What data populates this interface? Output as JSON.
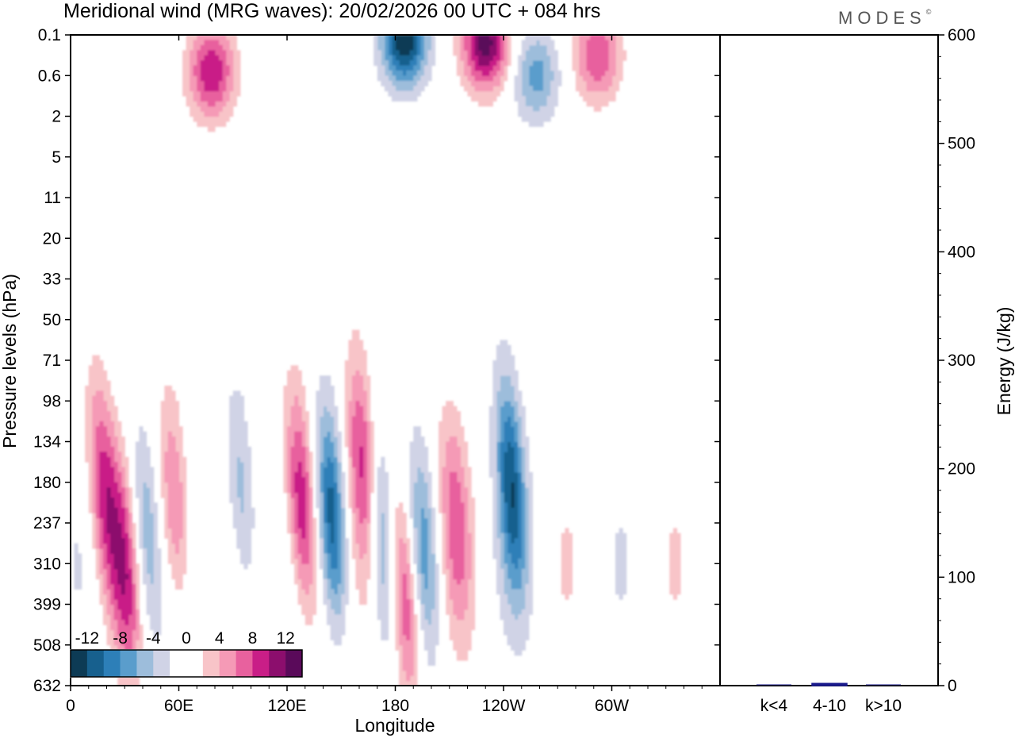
{
  "header": {
    "title": "Meridional wind (MRG waves):  20/02/2026  00 UTC  + 084 hrs",
    "brand": "MODES",
    "brand_mark": "©"
  },
  "chart_data": [
    {
      "type": "contour",
      "title": "Meridional wind (MRG waves)",
      "xlabel": "Longitude",
      "ylabel": "Pressure levels (hPa)",
      "x_ticks": [
        "0",
        "60E",
        "120E",
        "180",
        "120W",
        "60W"
      ],
      "x_tick_values": [
        0,
        60,
        120,
        180,
        240,
        300
      ],
      "xlim": [
        0,
        360
      ],
      "y_ticks": [
        "0.1",
        "0.6",
        "2",
        "5",
        "11",
        "20",
        "33",
        "50",
        "71",
        "98",
        "134",
        "180",
        "237",
        "310",
        "399",
        "508",
        "632"
      ],
      "ylim_hPa": [
        632,
        0.1
      ],
      "colorbar": {
        "labels": [
          "-12",
          "-8",
          "-4",
          "0",
          "4",
          "8",
          "12"
        ],
        "levels": [
          -14,
          -12,
          -10,
          -8,
          -6,
          -4,
          -2,
          0,
          2,
          4,
          6,
          8,
          10,
          12,
          14
        ],
        "colors": [
          "#0d3b55",
          "#17608e",
          "#2d7fb8",
          "#5a9dcc",
          "#9dbddb",
          "#d0d3e6",
          "#ffffff",
          "#ffffff",
          "#f8c4c8",
          "#f59ab6",
          "#e8619e",
          "#c91e87",
          "#8c0e6d",
          "#5a0a5a"
        ]
      },
      "features": [
        {
          "kind": "pos",
          "lon": 18,
          "lev": 11.2,
          "amp": 9
        },
        {
          "kind": "pos",
          "lon": 30,
          "lev": 13.2,
          "amp": 8
        },
        {
          "kind": "neg",
          "lon": 42,
          "lev": 12.3,
          "amp": -7
        },
        {
          "kind": "pos",
          "lon": 58,
          "lev": 11.6,
          "amp": 7
        },
        {
          "kind": "neg",
          "lon": 95,
          "lev": 11.5,
          "amp": -6
        },
        {
          "kind": "pos",
          "lon": 128,
          "lev": 11.6,
          "amp": 11
        },
        {
          "kind": "neg",
          "lon": 145,
          "lev": 11.9,
          "amp": -12
        },
        {
          "kind": "pos",
          "lon": 162,
          "lev": 10.5,
          "amp": 9
        },
        {
          "kind": "pos",
          "lon": 185,
          "lev": 13.7,
          "amp": 10
        },
        {
          "kind": "neg",
          "lon": 172,
          "lev": 12.2,
          "amp": -7
        },
        {
          "kind": "neg",
          "lon": 196,
          "lev": 12.8,
          "amp": -7
        },
        {
          "kind": "pos",
          "lon": 213,
          "lev": 11.8,
          "amp": 6
        },
        {
          "kind": "neg",
          "lon": 244,
          "lev": 11.0,
          "amp": -11
        },
        {
          "kind": "pos",
          "lon": 78,
          "lev": 0.9,
          "amp": 10
        },
        {
          "kind": "neg",
          "lon": 185,
          "lev": 0.1,
          "amp": -14
        },
        {
          "kind": "pos",
          "lon": 230,
          "lev": 0.2,
          "amp": 13
        },
        {
          "kind": "neg",
          "lon": 258,
          "lev": 1.0,
          "amp": -7
        },
        {
          "kind": "pos",
          "lon": 292,
          "lev": 0.5,
          "amp": 8
        }
      ]
    },
    {
      "type": "bar",
      "categories": [
        "k<4",
        "4-10",
        "k>10"
      ],
      "values": [
        0,
        2,
        0
      ],
      "ylabel": "Energy (J/kg)",
      "ylim": [
        0,
        600
      ],
      "y_ticks": [
        "0",
        "100",
        "200",
        "300",
        "400",
        "500",
        "600"
      ],
      "bar_color": "#1a1a8c"
    }
  ]
}
